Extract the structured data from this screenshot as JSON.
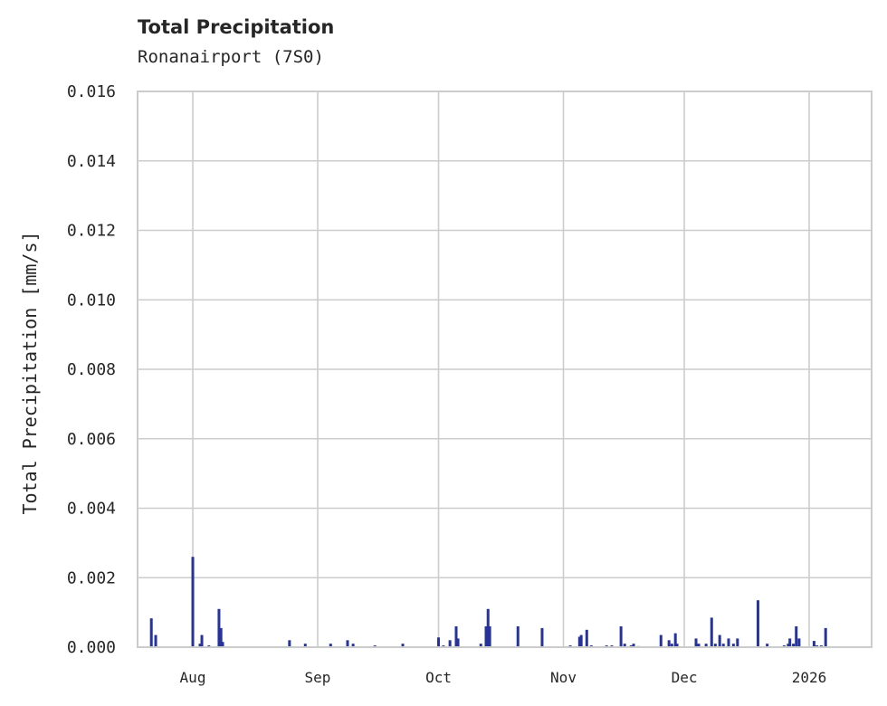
{
  "chart_data": {
    "type": "bar",
    "title": "Total Precipitation",
    "subtitle": "Ronanairport (7S0)",
    "xlabel": "",
    "ylabel": "Total Precipitation [mm/s]",
    "ylim": [
      0,
      0.016
    ],
    "xlim": [
      "2025-07-18T07:00",
      "2026-01-16T12:00"
    ],
    "grid": true,
    "color": "#26339a",
    "yticks": [
      "0.000",
      "0.002",
      "0.004",
      "0.006",
      "0.008",
      "0.010",
      "0.012",
      "0.014",
      "0.016"
    ],
    "xticks": [
      {
        "date": "2025-08-01",
        "label": "Aug"
      },
      {
        "date": "2025-09-01",
        "label": "Sep"
      },
      {
        "date": "2025-10-01",
        "label": "Oct"
      },
      {
        "date": "2025-11-01",
        "label": "Nov"
      },
      {
        "date": "2025-12-01",
        "label": "Dec"
      },
      {
        "date": "2026-01-01",
        "label": "2026"
      }
    ],
    "points": [
      [
        "2025-07-21T17:00",
        0.00083
      ],
      [
        "2025-07-22T19:00",
        0.00035
      ],
      [
        "2025-08-01T00:00",
        0.0026
      ],
      [
        "2025-08-02T19:00",
        0.0001
      ],
      [
        "2025-08-03T06:00",
        0.00035
      ],
      [
        "2025-08-05T00:00",
        5e-05
      ],
      [
        "2025-08-07T12:00",
        0.0011
      ],
      [
        "2025-08-08T00:00",
        0.00055
      ],
      [
        "2025-08-08T10:00",
        0.00015
      ],
      [
        "2025-08-25T00:00",
        0.0002
      ],
      [
        "2025-08-28T22:00",
        0.0001
      ],
      [
        "2025-09-04T05:00",
        0.0001
      ],
      [
        "2025-09-08T10:00",
        0.0002
      ],
      [
        "2025-09-09T19:00",
        0.0001
      ],
      [
        "2025-09-15T05:00",
        5e-05
      ],
      [
        "2025-09-22T03:00",
        0.0001
      ],
      [
        "2025-10-01T00:00",
        0.00028
      ],
      [
        "2025-10-02T05:00",
        5e-05
      ],
      [
        "2025-10-03T20:00",
        0.0002
      ],
      [
        "2025-10-05T09:00",
        0.0006
      ],
      [
        "2025-10-05T20:00",
        0.00025
      ],
      [
        "2025-10-11T12:00",
        0.0001
      ],
      [
        "2025-10-12T19:00",
        0.0006
      ],
      [
        "2025-10-13T07:00",
        0.0011
      ],
      [
        "2025-10-13T17:00",
        0.0006
      ],
      [
        "2025-10-20T17:00",
        0.0006
      ],
      [
        "2025-10-26T17:00",
        0.00055
      ],
      [
        "2025-11-02T17:00",
        5e-05
      ],
      [
        "2025-11-05T00:00",
        0.0003
      ],
      [
        "2025-11-05T10:00",
        0.00035
      ],
      [
        "2025-11-06T19:00",
        0.0005
      ],
      [
        "2025-11-07T22:00",
        5e-05
      ],
      [
        "2025-11-11T17:00",
        5e-05
      ],
      [
        "2025-11-13T00:00",
        5e-05
      ],
      [
        "2025-11-15T07:00",
        0.0006
      ],
      [
        "2025-11-16T05:00",
        0.0001
      ],
      [
        "2025-11-17T19:00",
        5e-05
      ],
      [
        "2025-11-18T10:00",
        0.0001
      ],
      [
        "2025-11-19T14:00",
        3e-05
      ],
      [
        "2025-11-25T05:00",
        0.00035
      ],
      [
        "2025-11-27T05:00",
        0.0002
      ],
      [
        "2025-11-27T22:00",
        0.0001
      ],
      [
        "2025-11-28T19:00",
        0.0004
      ],
      [
        "2025-11-29T05:00",
        0.0001
      ],
      [
        "2025-12-03T22:00",
        0.00025
      ],
      [
        "2025-12-04T14:00",
        0.0001
      ],
      [
        "2025-12-06T10:00",
        0.0001
      ],
      [
        "2025-12-07T19:00",
        0.00085
      ],
      [
        "2025-12-08T17:00",
        0.0001
      ],
      [
        "2025-12-09T19:00",
        0.00035
      ],
      [
        "2025-12-10T17:00",
        0.0001
      ],
      [
        "2025-12-12T00:00",
        0.00025
      ],
      [
        "2025-12-13T05:00",
        0.0001
      ],
      [
        "2025-12-14T05:00",
        0.00025
      ],
      [
        "2025-12-19T07:00",
        0.00135
      ],
      [
        "2025-12-21T14:00",
        0.0001
      ],
      [
        "2025-12-25T19:00",
        5e-05
      ],
      [
        "2025-12-26T19:00",
        0.0001
      ],
      [
        "2025-12-27T05:00",
        0.00025
      ],
      [
        "2025-12-28T02:00",
        0.0001
      ],
      [
        "2025-12-28T19:00",
        0.0006
      ],
      [
        "2025-12-29T12:00",
        0.00025
      ],
      [
        "2026-01-02T05:00",
        0.00018
      ],
      [
        "2026-01-02T22:00",
        5e-05
      ],
      [
        "2026-01-04T00:00",
        5e-05
      ],
      [
        "2026-01-05T02:00",
        0.00055
      ]
    ]
  }
}
